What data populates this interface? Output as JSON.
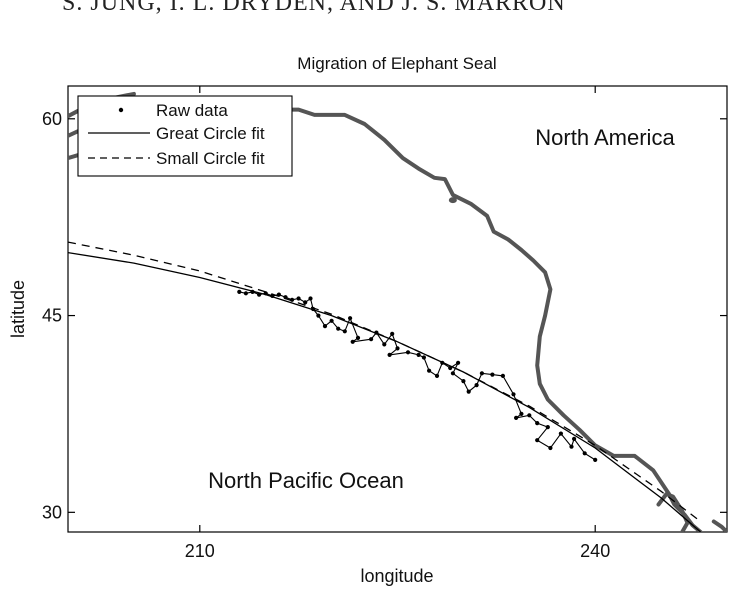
{
  "running_header": "S. JUNG, I. L. DRYDEN, AND J. S. MARRON",
  "chart_data": {
    "type": "scatter",
    "title": "Migration of Elephant Seal",
    "xlabel": "longitude",
    "ylabel": "latitude",
    "xlim": [
      200,
      250
    ],
    "ylim": [
      28.5,
      62.5
    ],
    "xticks": [
      210,
      240
    ],
    "yticks": [
      30,
      45,
      60
    ],
    "grid": false,
    "legend_position": "top-left",
    "legend": [
      "Raw data",
      "Great Circle fit",
      "Small Circle fit"
    ],
    "annotations": [
      "North America",
      "North Pacific Ocean"
    ],
    "series": [
      {
        "name": "Raw data",
        "style": "dots-connected",
        "color": "#000000",
        "points": [
          [
            213.0,
            46.8
          ],
          [
            213.5,
            46.7
          ],
          [
            214.0,
            46.8
          ],
          [
            214.5,
            46.6
          ],
          [
            215.0,
            46.7
          ],
          [
            215.5,
            46.5
          ],
          [
            216.0,
            46.6
          ],
          [
            216.5,
            46.4
          ],
          [
            217.0,
            46.2
          ],
          [
            217.5,
            46.3
          ],
          [
            218.0,
            46.0
          ],
          [
            218.4,
            46.3
          ],
          [
            218.6,
            45.5
          ],
          [
            219.0,
            45.0
          ],
          [
            219.5,
            44.2
          ],
          [
            220.0,
            44.6
          ],
          [
            220.5,
            44.0
          ],
          [
            221.0,
            43.8
          ],
          [
            221.4,
            44.8
          ],
          [
            222.0,
            43.3
          ],
          [
            221.6,
            43.0
          ],
          [
            223.0,
            43.2
          ],
          [
            223.4,
            43.7
          ],
          [
            224.0,
            42.8
          ],
          [
            224.6,
            43.6
          ],
          [
            225.0,
            42.5
          ],
          [
            224.4,
            42.0
          ],
          [
            225.8,
            42.2
          ],
          [
            226.6,
            42.0
          ],
          [
            227.0,
            41.8
          ],
          [
            227.4,
            40.8
          ],
          [
            228.0,
            40.4
          ],
          [
            228.4,
            41.4
          ],
          [
            229.0,
            41.0
          ],
          [
            229.6,
            41.4
          ],
          [
            229.2,
            40.6
          ],
          [
            230.0,
            40.0
          ],
          [
            230.4,
            39.2
          ],
          [
            231.0,
            39.7
          ],
          [
            231.4,
            40.6
          ],
          [
            232.2,
            40.5
          ],
          [
            233.0,
            40.4
          ],
          [
            233.8,
            39.0
          ],
          [
            234.4,
            37.5
          ],
          [
            234.0,
            37.2
          ],
          [
            235.0,
            37.4
          ],
          [
            235.6,
            36.8
          ],
          [
            236.4,
            36.5
          ],
          [
            235.6,
            35.5
          ],
          [
            236.6,
            34.9
          ],
          [
            237.4,
            36.0
          ],
          [
            238.2,
            35.0
          ],
          [
            238.4,
            35.6
          ],
          [
            239.2,
            34.5
          ],
          [
            240.0,
            34.0
          ]
        ]
      },
      {
        "name": "Great Circle fit",
        "style": "solid",
        "color": "#000000",
        "points": [
          [
            200,
            49.8
          ],
          [
            205,
            49.0
          ],
          [
            210,
            47.9
          ],
          [
            215,
            46.6
          ],
          [
            220,
            45.0
          ],
          [
            225,
            43.0
          ],
          [
            230,
            40.7
          ],
          [
            235,
            38.0
          ],
          [
            240,
            34.9
          ],
          [
            245,
            31.1
          ],
          [
            248,
            28.5
          ]
        ]
      },
      {
        "name": "Small Circle fit",
        "style": "dashed",
        "color": "#000000",
        "points": [
          [
            200,
            50.6
          ],
          [
            205,
            49.6
          ],
          [
            210,
            48.4
          ],
          [
            215,
            46.8
          ],
          [
            220,
            45.1
          ],
          [
            225,
            43.0
          ],
          [
            230,
            40.7
          ],
          [
            235,
            38.1
          ],
          [
            240,
            35.1
          ],
          [
            245,
            31.6
          ],
          [
            248,
            29.3
          ]
        ]
      },
      {
        "name": "Coastline",
        "style": "thick",
        "color": "#555555",
        "segments": [
          [
            [
              200.0,
              58.7
            ],
            [
              201.5,
              59.4
            ],
            [
              203.5,
              59.9
            ],
            [
              206.5,
              60.1
            ],
            [
              210.0,
              60.4
            ],
            [
              213.0,
              60.5
            ],
            [
              215.5,
              60.7
            ],
            [
              217.5,
              60.7
            ],
            [
              218.7,
              60.3
            ],
            [
              221.0,
              60.3
            ],
            [
              222.5,
              59.6
            ],
            [
              224.0,
              58.4
            ],
            [
              225.4,
              57.0
            ],
            [
              226.6,
              56.2
            ],
            [
              227.8,
              55.5
            ],
            [
              228.6,
              55.4
            ],
            [
              229.2,
              54.2
            ],
            [
              230.6,
              53.5
            ],
            [
              231.8,
              52.6
            ],
            [
              232.3,
              51.4
            ],
            [
              233.4,
              50.8
            ],
            [
              234.4,
              50.0
            ],
            [
              235.3,
              49.2
            ],
            [
              236.2,
              48.3
            ],
            [
              236.6,
              47.0
            ],
            [
              236.2,
              45.0
            ],
            [
              235.8,
              43.4
            ],
            [
              235.6,
              41.2
            ],
            [
              235.8,
              39.8
            ],
            [
              236.4,
              38.6
            ],
            [
              237.6,
              37.4
            ],
            [
              238.8,
              36.3
            ],
            [
              240.0,
              35.1
            ],
            [
              241.4,
              34.3
            ],
            [
              243.0,
              34.3
            ],
            [
              244.4,
              33.2
            ],
            [
              245.6,
              31.4
            ],
            [
              246.0,
              30.6
            ],
            [
              246.8,
              29.8
            ],
            [
              247.4,
              29.0
            ],
            [
              248.0,
              28.5
            ]
          ],
          [
            [
              200.0,
              60.2
            ],
            [
              201.5,
              61.0
            ],
            [
              203.5,
              61.6
            ],
            [
              205.0,
              61.9
            ]
          ],
          [
            [
              200.0,
              57.0
            ],
            [
              201.0,
              57.3
            ],
            [
              202.0,
              57.6
            ]
          ],
          [
            [
              244.8,
              30.6
            ],
            [
              245.4,
              31.4
            ],
            [
              245.9,
              31.2
            ],
            [
              246.6,
              30.1
            ],
            [
              247.0,
              29.2
            ],
            [
              246.6,
              28.5
            ]
          ],
          [
            [
              249.0,
              29.3
            ],
            [
              249.6,
              28.9
            ],
            [
              250.0,
              28.5
            ]
          ]
        ],
        "islands": [
          [
            229.2,
            53.8
          ]
        ]
      }
    ]
  }
}
